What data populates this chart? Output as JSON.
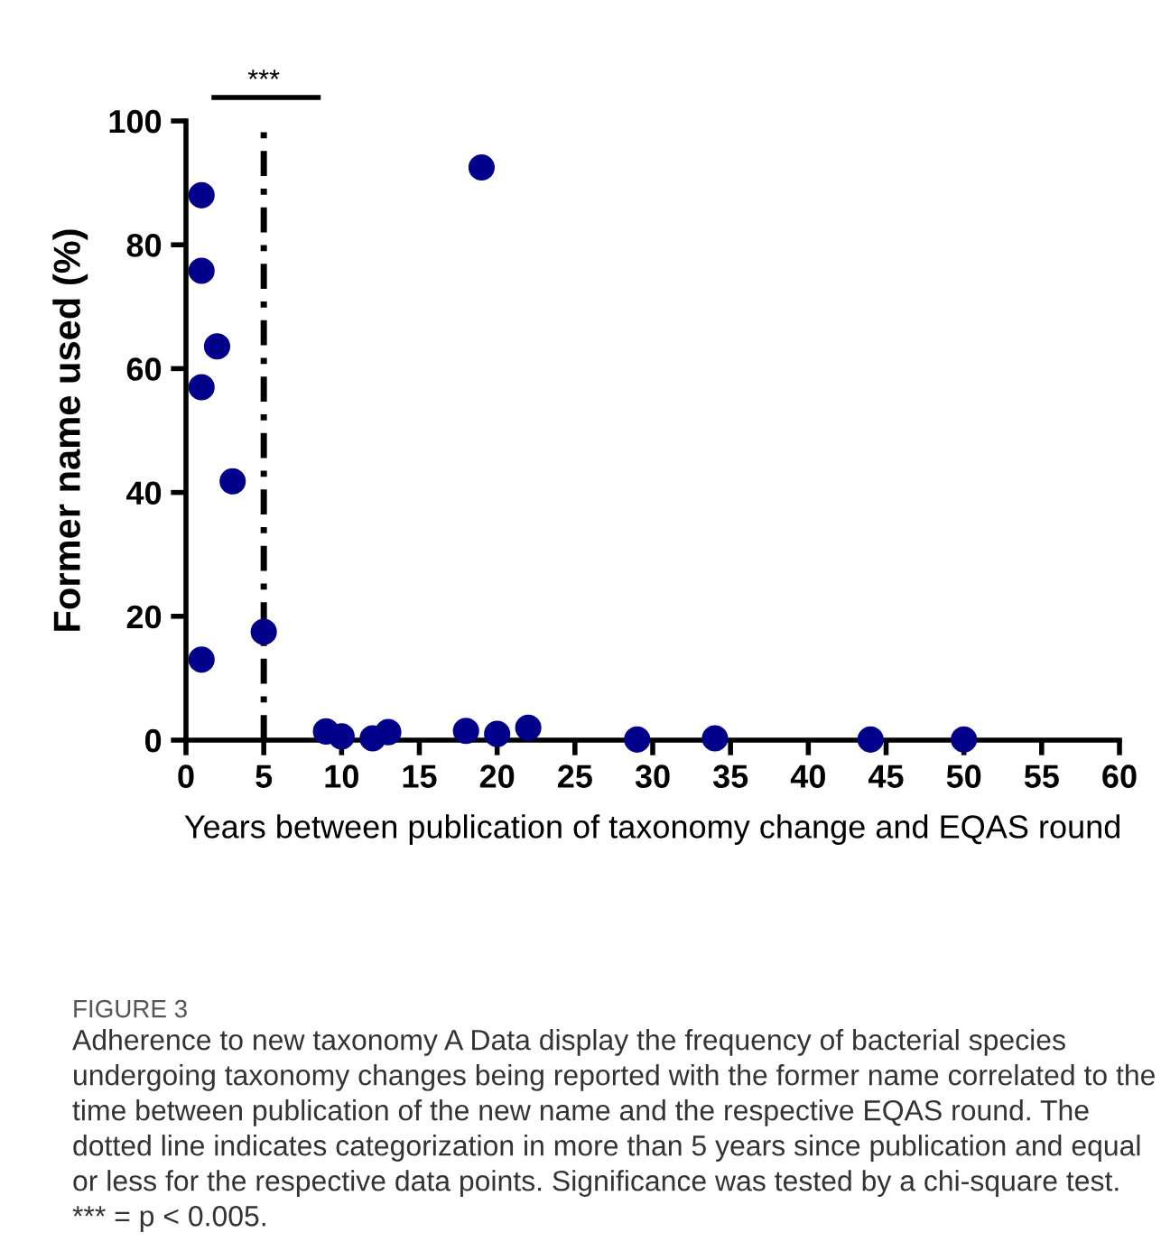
{
  "chart_data": {
    "type": "scatter",
    "xlabel": "Years between publication of taxonomy change and EQAS round",
    "ylabel": "Former name used (%)",
    "x": [
      1,
      1,
      1,
      1,
      2,
      3,
      5,
      9,
      10,
      12,
      13,
      18,
      19,
      20,
      22,
      29,
      34,
      44,
      50
    ],
    "values": [
      88,
      75.8,
      57,
      13,
      63.6,
      41.8,
      17.5,
      1.4,
      0.6,
      0.3,
      1.3,
      1.5,
      92.5,
      1.0,
      2.0,
      0.1,
      0.3,
      0.1,
      0.1
    ],
    "color": "#00008b",
    "marker": "circle",
    "xlim": [
      0,
      60
    ],
    "xticks": [
      0,
      5,
      10,
      15,
      20,
      25,
      30,
      35,
      40,
      45,
      50,
      55,
      60
    ],
    "ylim": [
      0,
      100
    ],
    "yticks": [
      0,
      20,
      40,
      60,
      80,
      100
    ],
    "grid": false,
    "ref_lines": [
      {
        "axis": "x",
        "value": 5,
        "color": "#000000",
        "line_style": "dotted"
      }
    ],
    "annotations": [
      {
        "text": "***",
        "x": 5,
        "y": 100
      },
      "FIGURE 3",
      "Adherence to new taxonomy A Data display the frequency of bacterial species undergoing taxonomy changes being reported with the former name correlated to the time between publication of the new name and the respective EQAS round. The dotted line indicates categorization in more than 5 years since publication and equal or less for the respective data points. Significance was tested by a chi-square test. *** = p < 0.005."
    ]
  }
}
